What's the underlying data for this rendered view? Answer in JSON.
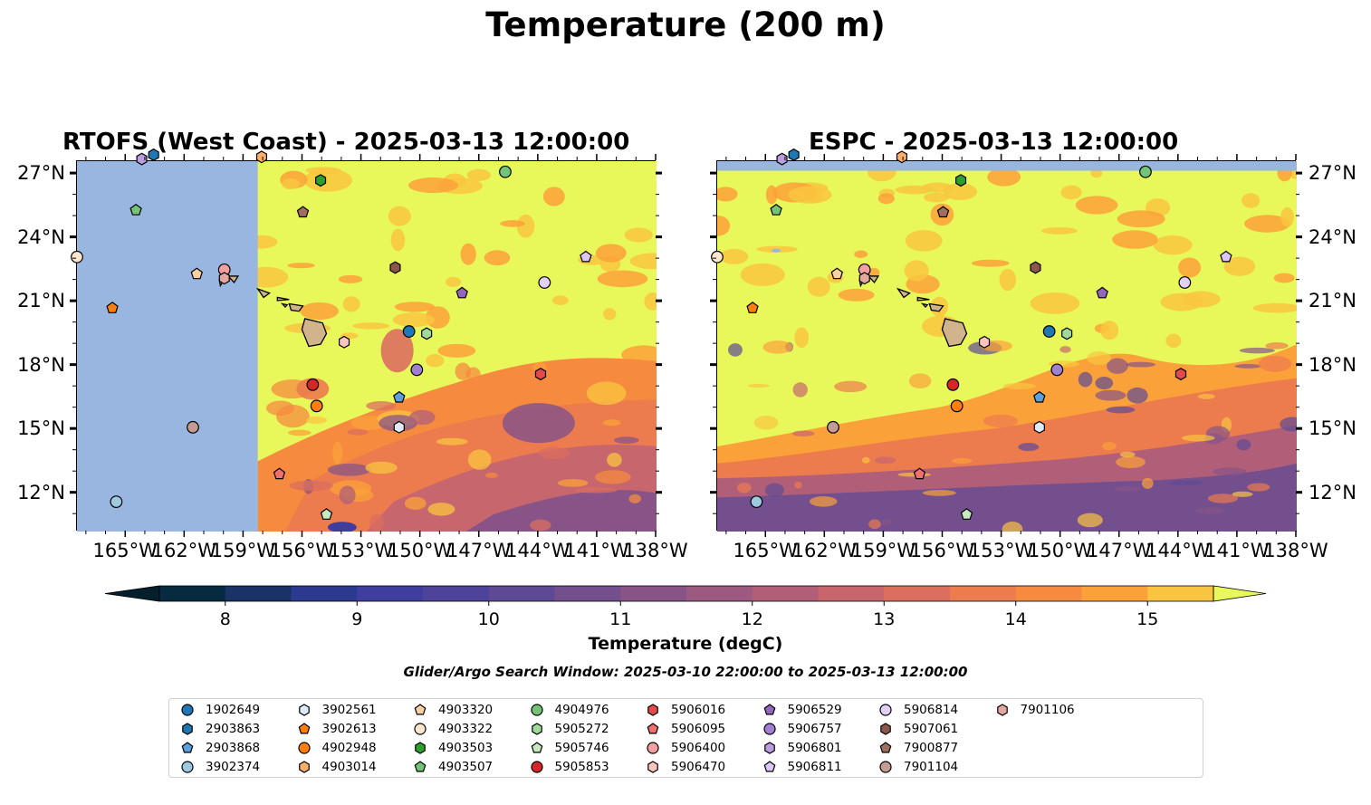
{
  "figure": {
    "title": "Temperature (200 m)",
    "subtitle": "Glider/Argo Search Window: 2025-03-10 22:00:00 to 2025-03-13 12:00:00"
  },
  "panels": [
    {
      "title": "RTOFS (West Coast) - 2025-03-13 12:00:00",
      "model": "RTOFS"
    },
    {
      "title": "ESPC - 2025-03-13 12:00:00",
      "model": "ESPC"
    }
  ],
  "axes": {
    "lon_range": [
      -167.5,
      -138
    ],
    "lat_range": [
      10.2,
      27.6
    ],
    "lon_ticks": [
      -165,
      -162,
      -159,
      -156,
      -153,
      -150,
      -147,
      -144,
      -141,
      -138
    ],
    "lon_labels": [
      "165°W",
      "162°W",
      "159°W",
      "156°W",
      "153°W",
      "150°W",
      "147°W",
      "144°W",
      "141°W",
      "138°W"
    ],
    "lat_ticks": [
      12,
      15,
      18,
      21,
      24,
      27
    ],
    "lat_labels": [
      "12°N",
      "15°N",
      "18°N",
      "21°N",
      "24°N",
      "27°N"
    ]
  },
  "colorbar": {
    "label": "Temperature (degC)",
    "ticks": [
      "8",
      "9",
      "10",
      "11",
      "12",
      "13",
      "14",
      "15"
    ],
    "min": 7.5,
    "max": 15.5,
    "colors": [
      "#062b40",
      "#1a3266",
      "#2b3a8f",
      "#3f3e9e",
      "#4e4399",
      "#5e4a94",
      "#734f8e",
      "#885487",
      "#9d5a80",
      "#b15f78",
      "#c7666d",
      "#db6e5f",
      "#ec7b4e",
      "#f68b40",
      "#fba13a",
      "#f9c540",
      "#f6e25a"
    ],
    "extend_low": "#05202c",
    "extend_high": "#e8f75a",
    "land_color": "#d2b48c",
    "nodata_color": "#98b6e0"
  },
  "chart_data": {
    "type": "scatter",
    "title": "Temperature (200 m)",
    "xlabel": "",
    "ylabel": "",
    "xlim": [
      -167.5,
      -138
    ],
    "ylim": [
      10.2,
      27.6
    ],
    "series": [
      {
        "name": "1902649",
        "marker": "circle",
        "color": "#1f77b4",
        "lon": -150.6,
        "lat": 19.6
      },
      {
        "name": "2903863",
        "marker": "hexagon",
        "color": "#1f77b4",
        "lon": -163.6,
        "lat": 27.9
      },
      {
        "name": "2903868",
        "marker": "pentagon",
        "color": "#5aa0dc",
        "lon": -151.1,
        "lat": 16.5
      },
      {
        "name": "3902374",
        "marker": "circle",
        "color": "#9ecae1",
        "lon": -165.5,
        "lat": 11.6
      },
      {
        "name": "3902561",
        "marker": "hexagon",
        "color": "#deebf7",
        "lon": -151.1,
        "lat": 15.1
      },
      {
        "name": "3902613",
        "marker": "pentagon",
        "color": "#ff7f0e",
        "lon": -165.7,
        "lat": 20.7
      },
      {
        "name": "4902948",
        "marker": "circle",
        "color": "#ff7f0e",
        "lon": -155.3,
        "lat": 16.1
      },
      {
        "name": "4903014",
        "marker": "hexagon",
        "color": "#fdae6b",
        "lon": -158.1,
        "lat": 27.8
      },
      {
        "name": "4903320",
        "marker": "pentagon",
        "color": "#fdd0a2",
        "lon": -161.4,
        "lat": 22.3
      },
      {
        "name": "4903322",
        "marker": "circle",
        "color": "#fee6ce",
        "lon": -167.5,
        "lat": 23.1
      },
      {
        "name": "4903503",
        "marker": "hexagon",
        "color": "#2ca02c",
        "lon": -155.1,
        "lat": 26.7
      },
      {
        "name": "4903507",
        "marker": "pentagon",
        "color": "#74c476",
        "lon": -164.5,
        "lat": 25.3
      },
      {
        "name": "4904976",
        "marker": "circle",
        "color": "#74c476",
        "lon": -145.7,
        "lat": 27.1
      },
      {
        "name": "5905272",
        "marker": "hexagon",
        "color": "#a1d99b",
        "lon": -149.7,
        "lat": 19.5
      },
      {
        "name": "5905746",
        "marker": "pentagon",
        "color": "#c7e9c0",
        "lon": -154.8,
        "lat": 11.0
      },
      {
        "name": "5905853",
        "marker": "circle",
        "color": "#d62728",
        "lon": -155.5,
        "lat": 17.1
      },
      {
        "name": "5906016",
        "marker": "hexagon",
        "color": "#e34a4a",
        "lon": -143.9,
        "lat": 17.6
      },
      {
        "name": "5906095",
        "marker": "pentagon",
        "color": "#f07070",
        "lon": -157.2,
        "lat": 12.9
      },
      {
        "name": "5906400",
        "marker": "circle",
        "color": "#f4a0a0",
        "lon": -160.0,
        "lat": 22.5
      },
      {
        "name": "5906470",
        "marker": "hexagon",
        "color": "#fcc5c0",
        "lon": -153.9,
        "lat": 19.1
      },
      {
        "name": "5906529",
        "marker": "pentagon",
        "color": "#9467bd",
        "lon": -147.9,
        "lat": 21.4
      },
      {
        "name": "5906757",
        "marker": "circle",
        "color": "#a17fd0",
        "lon": -150.2,
        "lat": 17.8
      },
      {
        "name": "5906801",
        "marker": "hexagon",
        "color": "#bc9de0",
        "lon": -164.2,
        "lat": 27.7
      },
      {
        "name": "5906811",
        "marker": "pentagon",
        "color": "#dcc6f5",
        "lon": -141.6,
        "lat": 23.1
      },
      {
        "name": "5906814",
        "marker": "circle",
        "color": "#e4d0f7",
        "lon": -143.7,
        "lat": 21.9
      },
      {
        "name": "5907061",
        "marker": "hexagon",
        "color": "#8c564b",
        "lon": -151.3,
        "lat": 22.6
      },
      {
        "name": "7900877",
        "marker": "pentagon",
        "color": "#a0705f",
        "lon": -156.0,
        "lat": 25.2
      },
      {
        "name": "7901104",
        "marker": "circle",
        "color": "#c49c94",
        "lon": -161.6,
        "lat": 15.1
      },
      {
        "name": "7901106",
        "marker": "hexagon",
        "color": "#e5a8a0",
        "lon": -160.0,
        "lat": 22.1
      }
    ]
  }
}
